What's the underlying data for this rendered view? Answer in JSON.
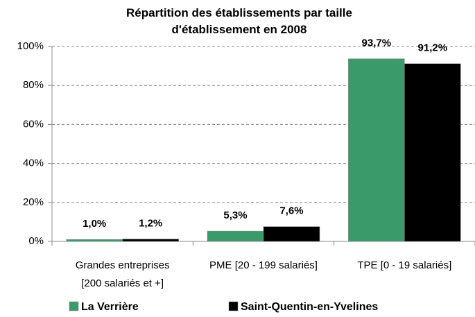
{
  "chart_data": {
    "type": "bar",
    "title": "Répartition des établissements par taille\nd'établissement en 2008",
    "categories": [
      "Grandes entreprises\n[200 salariés et +]",
      "PME [20 - 199 salariés]",
      "TPE [0 - 19 salariés]"
    ],
    "series": [
      {
        "name": "La Verrière",
        "color": "#3a9a6a",
        "values": [
          1.0,
          5.3,
          93.7
        ],
        "value_labels": [
          "1,0%",
          "5,3%",
          "93,7%"
        ]
      },
      {
        "name": "Saint-Quentin-en-Yvelines",
        "color": "#000000",
        "values": [
          1.2,
          7.6,
          91.2
        ],
        "value_labels": [
          "1,2%",
          "7,6%",
          "91,2%"
        ]
      }
    ],
    "ylim": [
      0,
      100
    ],
    "yticks": [
      {
        "value": 0,
        "label": "0%"
      },
      {
        "value": 20,
        "label": "20%"
      },
      {
        "value": 40,
        "label": "40%"
      },
      {
        "value": 60,
        "label": "60%"
      },
      {
        "value": 80,
        "label": "80%"
      },
      {
        "value": 100,
        "label": "100%"
      }
    ],
    "grid": true,
    "legend": "bottom"
  }
}
